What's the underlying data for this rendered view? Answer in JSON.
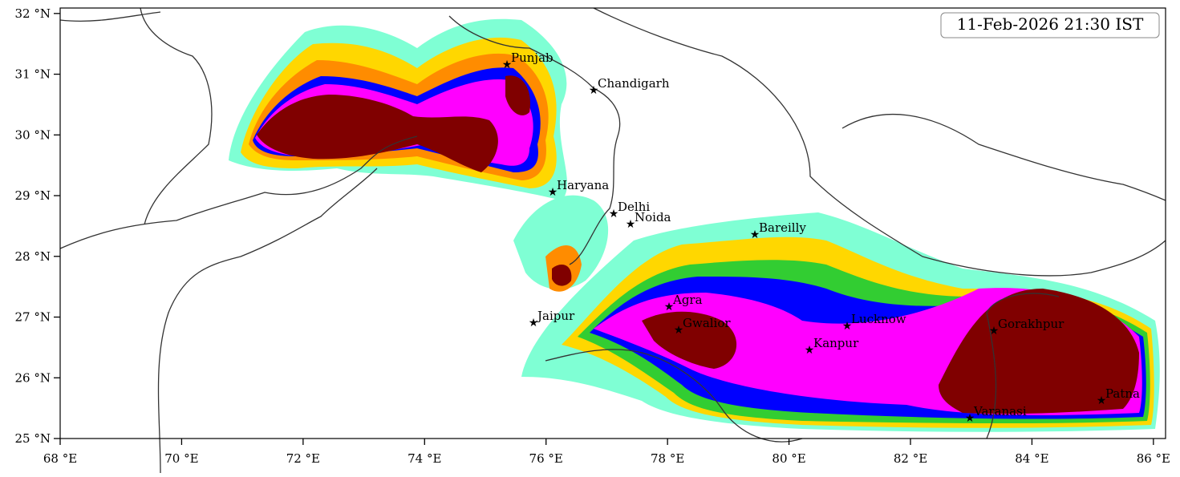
{
  "timestamp": "11-Feb-2026 21:30 IST",
  "x_axis": {
    "lim": [
      68,
      86.2
    ],
    "ticks": [
      {
        "value": 68,
        "label": "68 °E"
      },
      {
        "value": 70,
        "label": "70 °E"
      },
      {
        "value": 72,
        "label": "72 °E"
      },
      {
        "value": 74,
        "label": "74 °E"
      },
      {
        "value": 76,
        "label": "76 °E"
      },
      {
        "value": 78,
        "label": "78 °E"
      },
      {
        "value": 80,
        "label": "80 °E"
      },
      {
        "value": 82,
        "label": "82 °E"
      },
      {
        "value": 84,
        "label": "84 °E"
      },
      {
        "value": 86,
        "label": "86 °E"
      }
    ]
  },
  "y_axis": {
    "lim": [
      25,
      32.09
    ],
    "ticks": [
      {
        "value": 25,
        "label": "25 °N"
      },
      {
        "value": 26,
        "label": "26 °N"
      },
      {
        "value": 27,
        "label": "27 °N"
      },
      {
        "value": 28,
        "label": "28 °N"
      },
      {
        "value": 29,
        "label": "29 °N"
      },
      {
        "value": 30,
        "label": "30 °N"
      },
      {
        "value": 31,
        "label": "31 °N"
      },
      {
        "value": 32,
        "label": "32 °N"
      }
    ]
  },
  "cities": [
    "Punjab",
    "Chandigarh",
    "Haryana",
    "Delhi",
    "Noida",
    "Bareilly",
    "Jaipur",
    "Agra",
    "Gwalior",
    "Lucknow",
    "Kanpur",
    "Gorakhpur",
    "Varanasi",
    "Patna"
  ]
}
